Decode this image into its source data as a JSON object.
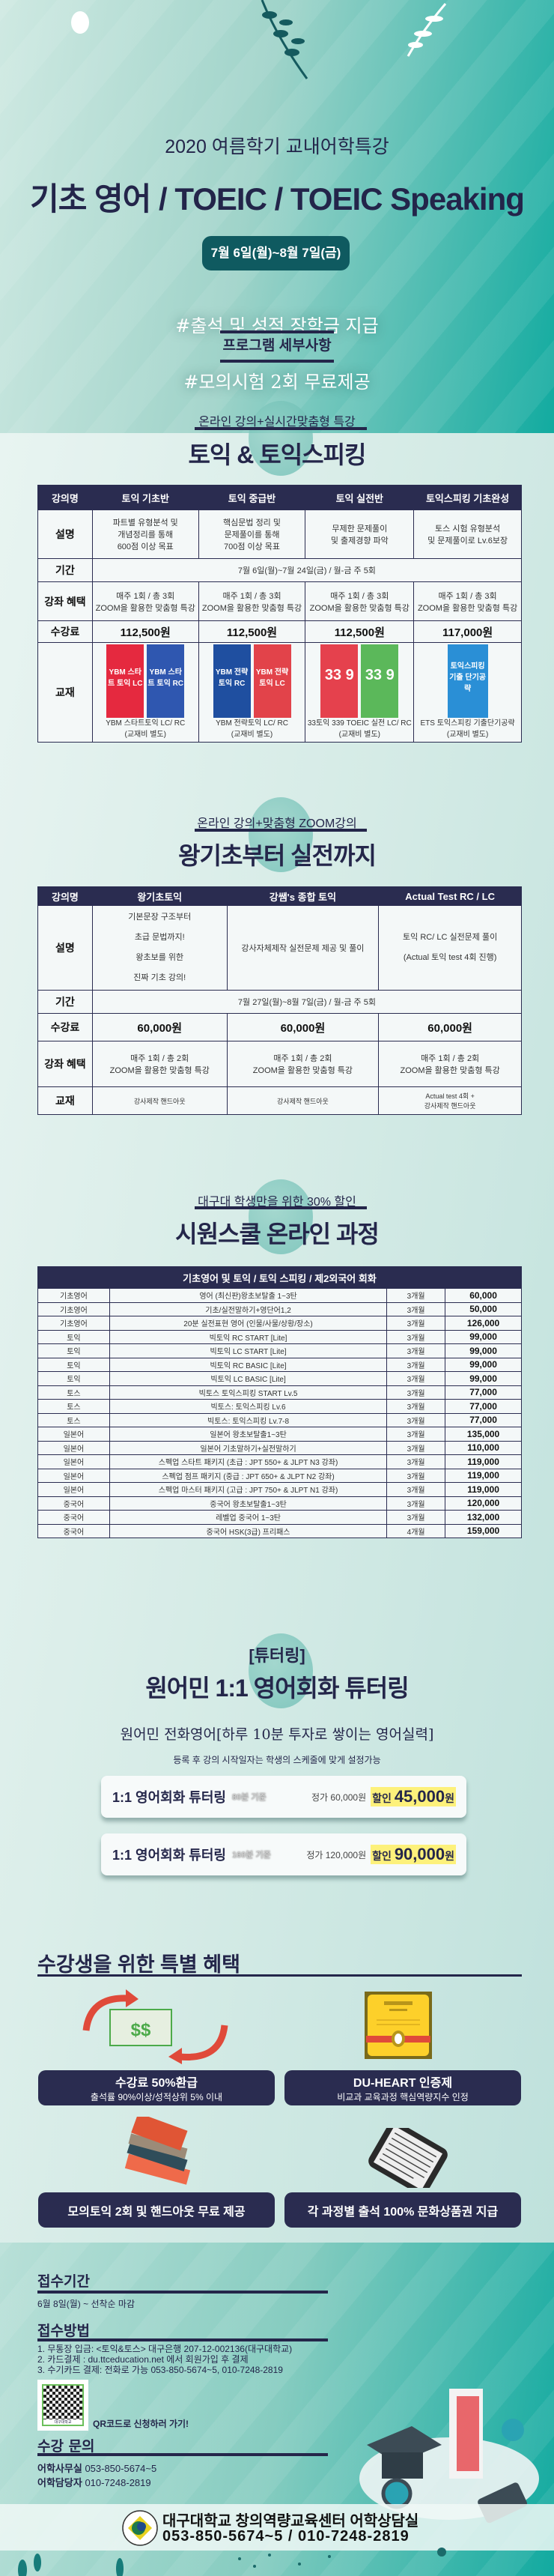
{
  "hero": {
    "subtitle": "2020 여름학기 교내어학특강",
    "title": "기초 영어 / TOEIC / TOEIC Speaking",
    "date": "7월 6일(월)~8월 7일(금)",
    "hashtags": [
      "#출석 및 성적 장학금 지급",
      "#모의시험 2회 무료제공"
    ]
  },
  "program": {
    "heading": "프로그램 세부사항"
  },
  "toeic": {
    "kicker": "온라인 강의+실시간맞춤형 특강",
    "title": "토익 & 토익스피킹",
    "headers": [
      "강의명",
      "토익 기초반",
      "토익 중급반",
      "토익 실전반",
      "토익스피킹 기초완성"
    ],
    "labels": {
      "desc": "설명",
      "period": "기간",
      "benefit": "강좌 혜택",
      "fee": "수강료",
      "book": "교재"
    },
    "desc": [
      [
        "파트별 유형분석 및",
        "개념정리를 통해",
        "600점 이상 목표"
      ],
      [
        "핵심문법 정리 및",
        "문제풀이를 통해",
        "700점 이상 목표"
      ],
      [
        "무제한 문제풀이",
        "및 출제경향 파악"
      ],
      [
        "토스 시험 유형분석",
        "및 문제풀이로 Lv.6보장"
      ]
    ],
    "period": "7월 6일(월)~7월 24일(금) / 월-금  주 5회",
    "benefit": [
      "매주 1회 / 총 3회",
      "ZOOM을 활용한 맞춤형 특강"
    ],
    "fees": [
      "112,500원",
      "112,500원",
      "112,500원",
      "117,000원"
    ],
    "books": [
      {
        "covers": [
          {
            "text": "YBM 스타트 토익 LC",
            "color": "#e5293f"
          },
          {
            "text": "YBM 스타트 토익 RC",
            "color": "#2f57b0"
          }
        ],
        "caption": "YBM 스타트토익 LC/ RC",
        "note": "(교재비 별도)"
      },
      {
        "covers": [
          {
            "text": "YBM 전략토익 RC",
            "color": "#1f4fa0"
          },
          {
            "text": "YBM 전략토익 LC",
            "color": "#e2434a"
          }
        ],
        "caption": "YBM 전략토익 LC/ RC",
        "note": "(교재비 별도)"
      },
      {
        "covers": [
          {
            "text": "33 9",
            "color": "#e5414d"
          },
          {
            "text": "33 9",
            "color": "#5bb85a"
          }
        ],
        "caption": "33토익 339 TOEIC 실전 LC/ RC",
        "note": "(교재비 별도)"
      },
      {
        "covers": [
          {
            "text": "토익스피킹 기출 단기공략",
            "color": "#2a8fd6"
          }
        ],
        "caption": "ETS 토익스피킹 기출단기공략",
        "note": "(교재비 별도)"
      }
    ]
  },
  "basic": {
    "kicker": "온라인 강의+맞춤형 ZOOM강의",
    "title": "왕기초부터 실전까지",
    "headers": [
      "강의명",
      "왕기초토익",
      "강쌤's 종합 토익",
      "Actual Test RC / LC"
    ],
    "desc": [
      [
        "기본문장 구조부터",
        "초급 문법까지!",
        "왕초보를 위한",
        "진짜 기초 강의!"
      ],
      [
        "강사자체제작 실전문제 제공 및 풀이"
      ],
      [
        "토익 RC/ LC 실전문제 풀이",
        "(Actual 토익 test 4회 진행)"
      ]
    ],
    "period": "7월 27일(월)~8월 7일(금) / 월-금  주 5회",
    "fees": [
      "60,000원",
      "60,000원",
      "60,000원"
    ],
    "benefit": [
      "매주 1회 / 총 2회",
      "ZOOM을 활용한 맞춤형 특강"
    ],
    "books": [
      [
        "강사제작 핸드아웃"
      ],
      [
        "강사제작 핸드아웃"
      ],
      [
        "Actual test 4회 +",
        "강사제작 핸드아웃"
      ]
    ]
  },
  "siwon": {
    "kicker": "대구대 학생만을 위한 30% 할인",
    "title": "시원스쿨 온라인 과정",
    "table_title": "기초영어 및 토익 / 토익 스피킹 / 제2외국어 회화",
    "rows": [
      [
        "기초영어",
        "영어 (최신판)왕초보탈출 1~3탄",
        "3개월",
        "60,000"
      ],
      [
        "기초영어",
        "기초/실전말하기+영단어1,2",
        "3개월",
        "50,000"
      ],
      [
        "기초영어",
        "20분 실전표현 영어 (인물/사물/상황/장소)",
        "3개월",
        "126,000"
      ],
      [
        "토익",
        "빅토익 RC START [Lite]",
        "3개월",
        "99,000"
      ],
      [
        "토익",
        "빅토익 LC START [Lite]",
        "3개월",
        "99,000"
      ],
      [
        "토익",
        "빅토익 RC BASIC [Lite]",
        "3개월",
        "99,000"
      ],
      [
        "토익",
        "빅토익 LC BASIC [Lite]",
        "3개월",
        "99,000"
      ],
      [
        "토스",
        "빅토스 토익스피킹 START Lv.5",
        "3개월",
        "77,000"
      ],
      [
        "토스",
        "빅토스: 토익스피킹 Lv.6",
        "3개월",
        "77,000"
      ],
      [
        "토스",
        "빅토스: 토익스피킹 Lv.7-8",
        "3개월",
        "77,000"
      ],
      [
        "일본어",
        "일본어 왕초보탈출1~3탄",
        "3개월",
        "135,000"
      ],
      [
        "일본어",
        "일본어 기초말하기+실전말하기",
        "3개월",
        "110,000"
      ],
      [
        "일본어",
        "스펙업 스타트 패키지 (초급 : JPT 550+ & JLPT N3 강좌)",
        "3개월",
        "119,000"
      ],
      [
        "일본어",
        "스펙업 점프 패키지 (중급 : JPT 650+ & JLPT N2 강좌)",
        "3개월",
        "119,000"
      ],
      [
        "일본어",
        "스펙업 마스터 패키지 (고급 : JPT 750+ & JLPT N1 강좌)",
        "3개월",
        "119,000"
      ],
      [
        "중국어",
        "중국어 왕초보탈출1~3탄",
        "3개월",
        "120,000"
      ],
      [
        "중국어",
        "레벨업 중국어 1~3탄",
        "3개월",
        "132,000"
      ],
      [
        "중국어",
        "중국어 HSK(3급) 프리패스",
        "4개월",
        "159,000"
      ]
    ]
  },
  "tutoring": {
    "kicker": "[튜터링]",
    "title": "원어민 1:1 영어회화 튜터링",
    "slogan": "원어민 전화영어[하루 10분 투자로 쌓이는 영어실력]",
    "note": "등록 후 강의 시작일자는 학생의 스케줄에 맞게 설정가능",
    "plans": [
      {
        "name": "1:1 영어회화 튜터링",
        "basis": "80분 기준",
        "regular": "정가 60,000원",
        "discount_label": "할인",
        "price": "45,000",
        "unit": "원"
      },
      {
        "name": "1:1 영어회화 튜터링",
        "basis": "160분 기준",
        "regular": "정가 120,000원",
        "discount_label": "할인",
        "price": "90,000",
        "unit": "원"
      }
    ]
  },
  "benefits": {
    "title": "수강생을 위한 특별 혜택",
    "items": [
      {
        "icon": "money-refund-icon",
        "title": "수강료 50%환급",
        "sub": "출석률 90%이상/성적상위 5% 이내"
      },
      {
        "icon": "certificate-icon",
        "title": "DU-HEART 인증제",
        "sub": "비교과 교육과정 핵심역량지수 인정"
      },
      {
        "icon": "books-icon",
        "title": "모의토익 2회 및 핸드아웃 무료 제공",
        "sub": ""
      },
      {
        "icon": "tablet-icon",
        "title": "각 과정별 출석 100% 문화상품권 지급",
        "sub": ""
      }
    ]
  },
  "apply": {
    "period_title": "접수기간",
    "period": "6월 8일(월) ~ 선착순 마감",
    "method_title": "접수방법",
    "methods": [
      "1. 무통장 입금: <토익&토스> 대구은행 207-12-002136(대구대학교)",
      "2. 카드결제 : du.ttceducation.net 에서 회원가입 후 결제",
      "3. 수기카드 결제: 전화로 가능 053-850-5674~5, 010-7248-2819"
    ],
    "qr_label": "QR코드로 신청하러 가기!",
    "qr_logo_text": "대구대학교",
    "contact_title": "수강 문의",
    "contacts": [
      {
        "label": "어학사무실",
        "value": "053-850-5674~5"
      },
      {
        "label": "어학담당자",
        "value": "010-7248-2819"
      }
    ]
  },
  "footer": {
    "org": "대구대학교 창의역량교육센터 어학상담실",
    "phones": "053-850-5674~5 / 010-7248-2819",
    "seal_text": "DAEGU UNIVERSITY"
  },
  "colors": {
    "navy": "#2a2c50",
    "teal": "#12aba0",
    "highlight": "#fdf17b"
  }
}
